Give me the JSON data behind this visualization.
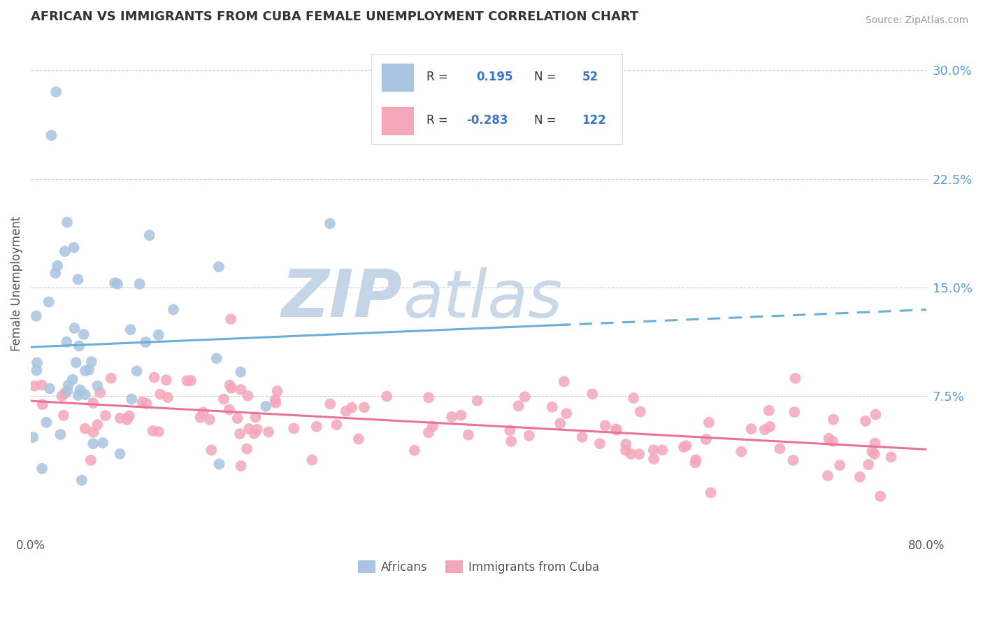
{
  "title": "AFRICAN VS IMMIGRANTS FROM CUBA FEMALE UNEMPLOYMENT CORRELATION CHART",
  "source": "Source: ZipAtlas.com",
  "ylabel": "Female Unemployment",
  "ytick_labels": [
    "7.5%",
    "15.0%",
    "22.5%",
    "30.0%"
  ],
  "ytick_values": [
    0.075,
    0.15,
    0.225,
    0.3
  ],
  "xlim": [
    0.0,
    0.8
  ],
  "ylim": [
    -0.02,
    0.325
  ],
  "r_african": 0.195,
  "n_african": 52,
  "r_cuba": -0.283,
  "n_cuba": 122,
  "african_color": "#a8c4e0",
  "cuba_color": "#f4a7b9",
  "trend_african_color": "#6baed6",
  "trend_cuba_color": "#e8729a",
  "watermark_zip_color": "#c5d5e8",
  "watermark_atlas_color": "#c8d8e8",
  "background_color": "#ffffff",
  "legend_box_color": "#f5f5f5",
  "legend_box_edge": "#dddddd",
  "r_text_color": "#3b78c4",
  "label_color": "#555555",
  "grid_color": "#cccccc",
  "source_color": "#999999",
  "tick_color": "#5b9bd5"
}
